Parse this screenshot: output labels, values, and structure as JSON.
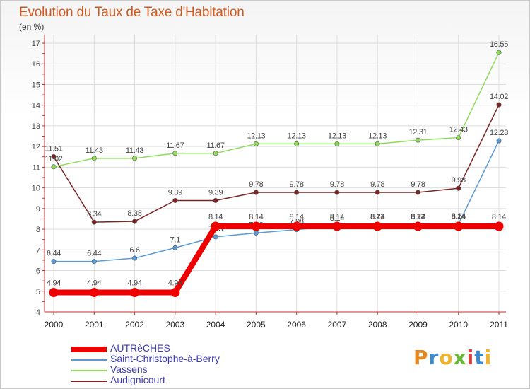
{
  "title": "Evolution du Taux de Taxe d'Habitation",
  "unit": "(en %)",
  "brand": {
    "text": "Proxiti",
    "letter_colors": [
      "#e2881f",
      "#3a8ad0",
      "#f0b32a",
      "#6aba3a",
      "#d84040",
      "#3a8ad0",
      "#f0b32a"
    ]
  },
  "chart_data": {
    "type": "line",
    "x": [
      "2000",
      "2001",
      "2002",
      "2003",
      "2004",
      "2005",
      "2006",
      "2007",
      "2008",
      "2009",
      "2010",
      "2011"
    ],
    "ylim": [
      4,
      17
    ],
    "yticks": [
      "4",
      "5",
      "6",
      "7",
      "8",
      "9",
      "10",
      "11",
      "12",
      "13",
      "14",
      "15",
      "16",
      "17"
    ],
    "grid": true,
    "legend_position": "bottom-left",
    "series": [
      {
        "name": "AUTRèCHES",
        "color": "#ee0000",
        "values": [
          4.94,
          4.94,
          4.94,
          4.94,
          8.14,
          8.14,
          8.14,
          8.14,
          8.14,
          8.14,
          8.14,
          8.14
        ],
        "labels": [
          "4.94",
          "4.94",
          "4.94",
          "4.94",
          "8.14",
          "8.14",
          "8.14",
          "8.14",
          "8.14",
          "8.14",
          "8.14",
          "8.14"
        ]
      },
      {
        "name": "Saint-Christophe-à-Berry",
        "color": "#5b9bd5",
        "values": [
          6.44,
          6.44,
          6.6,
          7.1,
          7.63,
          7.82,
          7.98,
          8.14,
          8.22,
          8.22,
          8.24,
          12.28
        ],
        "labels": [
          "6.44",
          "6.44",
          "6.6",
          "7.1",
          "7.63",
          "7.82",
          "7.98",
          "8.14",
          "8.22",
          "8.22",
          "8.24",
          "12.28"
        ]
      },
      {
        "name": "Vassens",
        "color": "#8fdc5a",
        "values": [
          11.02,
          11.43,
          11.43,
          11.67,
          11.67,
          12.13,
          12.13,
          12.13,
          12.13,
          12.31,
          12.43,
          16.55
        ],
        "labels": [
          "11.02",
          "11.43",
          "11.43",
          "11.67",
          "11.67",
          "12.13",
          "12.13",
          "12.13",
          "12.13",
          "12.31",
          "12.43",
          "16.55"
        ]
      },
      {
        "name": "Audignicourt",
        "color": "#7a2424",
        "values": [
          11.51,
          8.34,
          8.38,
          9.39,
          9.39,
          9.78,
          9.78,
          9.78,
          9.78,
          9.78,
          9.98,
          14.02
        ],
        "labels": [
          "11.51",
          "8.34",
          "8.38",
          "9.39",
          "9.39",
          "9.78",
          "9.78",
          "9.78",
          "9.78",
          "9.78",
          "9.98",
          "14.02"
        ]
      }
    ]
  }
}
